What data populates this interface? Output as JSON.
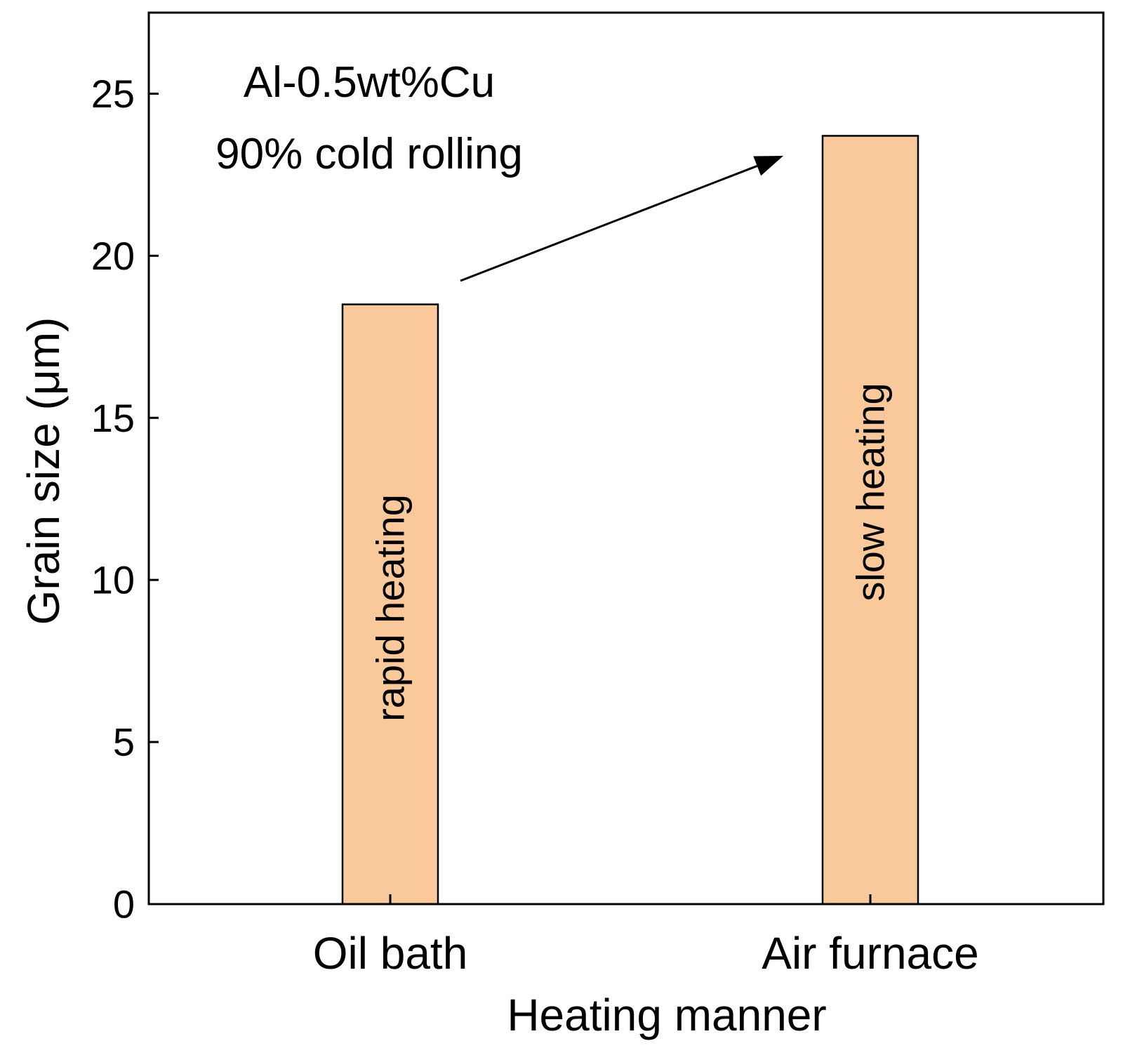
{
  "chart_data": {
    "type": "bar",
    "title": "",
    "xlabel": "Heating manner",
    "ylabel": "Grain size (μm)",
    "ylim": [
      0,
      27.5
    ],
    "yticks": [
      0,
      5,
      10,
      15,
      20,
      25
    ],
    "categories": [
      "Oil bath",
      "Air furnace"
    ],
    "values": [
      18.5,
      23.7
    ],
    "bar_labels": [
      "rapid heating",
      "slow heating"
    ],
    "bar_color": "#f9c89b",
    "grid": false,
    "annotations": [
      "Al-0.5wt%Cu",
      "90% cold rolling"
    ],
    "arrow": {
      "from_category": "Oil bath",
      "to_category": "Air furnace",
      "meaning": "increase in grain size"
    }
  }
}
